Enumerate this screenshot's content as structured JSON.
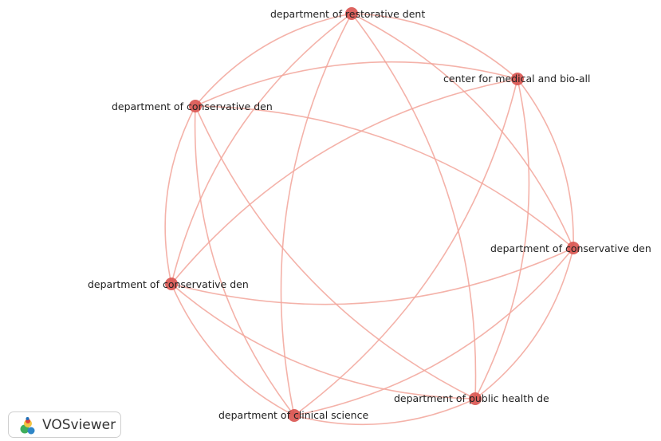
{
  "network": {
    "node_color": "#d9534f",
    "edge_color": "#f2a49a",
    "nodes": [
      {
        "id": "n1",
        "label": "department of restorative dent"
      },
      {
        "id": "n2",
        "label": "center for medical and bio-all"
      },
      {
        "id": "n3",
        "label": "department of conservative den"
      },
      {
        "id": "n4",
        "label": "department of conservative den"
      },
      {
        "id": "n5",
        "label": "department of conservative den"
      },
      {
        "id": "n6",
        "label": "department of public health de"
      },
      {
        "id": "n7",
        "label": "department of clinical science"
      }
    ],
    "edges": [
      [
        "n1",
        "n2"
      ],
      [
        "n1",
        "n3"
      ],
      [
        "n1",
        "n4"
      ],
      [
        "n1",
        "n5"
      ],
      [
        "n1",
        "n6"
      ],
      [
        "n1",
        "n7"
      ],
      [
        "n2",
        "n3"
      ],
      [
        "n2",
        "n4"
      ],
      [
        "n2",
        "n5"
      ],
      [
        "n2",
        "n6"
      ],
      [
        "n2",
        "n7"
      ],
      [
        "n3",
        "n4"
      ],
      [
        "n3",
        "n5"
      ],
      [
        "n3",
        "n6"
      ],
      [
        "n3",
        "n7"
      ],
      [
        "n4",
        "n5"
      ],
      [
        "n4",
        "n6"
      ],
      [
        "n4",
        "n7"
      ],
      [
        "n5",
        "n6"
      ],
      [
        "n5",
        "n7"
      ],
      [
        "n6",
        "n7"
      ]
    ]
  },
  "branding": {
    "name": "VOSviewer",
    "logo_icon": "vosviewer-logo-icon"
  }
}
